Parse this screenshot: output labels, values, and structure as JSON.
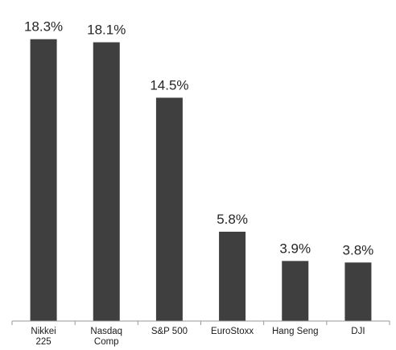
{
  "chart_data": {
    "type": "bar",
    "title": "",
    "xlabel": "",
    "ylabel": "",
    "categories": [
      "Nikkei 225",
      "Nasdaq Comp",
      "S&P 500",
      "EuroStoxx",
      "Hang Seng",
      "DJI"
    ],
    "category_lines": [
      [
        "Nikkei",
        "225"
      ],
      [
        "Nasdaq",
        "Comp"
      ],
      [
        "S&P 500"
      ],
      [
        "EuroStoxx"
      ],
      [
        "Hang Seng"
      ],
      [
        "DJI"
      ]
    ],
    "values": [
      18.3,
      18.1,
      14.5,
      5.8,
      3.9,
      3.8
    ],
    "data_labels": [
      "18.3%",
      "18.1%",
      "14.5%",
      "5.8%",
      "3.9%",
      "3.8%"
    ],
    "unit": "%",
    "ylim": [
      0,
      19.8
    ],
    "grid": false,
    "legend": "none",
    "bar_color": "#3f3f3f",
    "axis_color": "#9a9a9a"
  }
}
